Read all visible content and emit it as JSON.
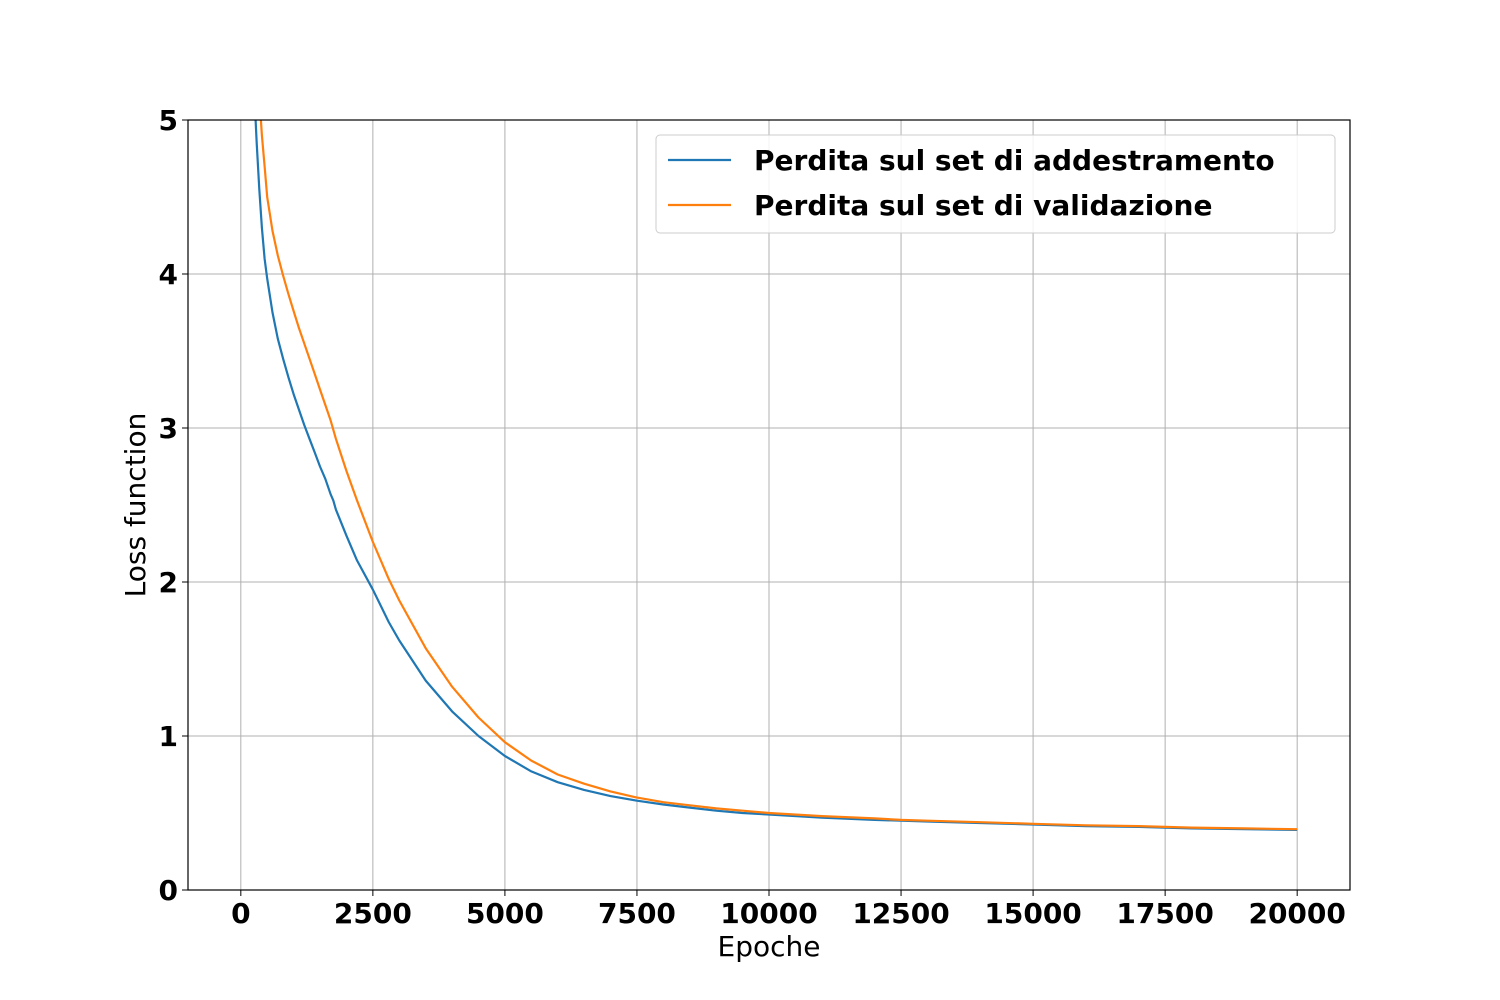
{
  "chart_data": {
    "type": "line",
    "title": "",
    "xlabel": "Epoche",
    "ylabel": "Loss function",
    "xlim": [
      -1000,
      21000
    ],
    "ylim": [
      0,
      5
    ],
    "xticks": [
      0,
      2500,
      5000,
      7500,
      10000,
      12500,
      15000,
      17500,
      20000
    ],
    "yticks": [
      0,
      1,
      2,
      3,
      4,
      5
    ],
    "xtick_labels": [
      "0",
      "2500",
      "5000",
      "7500",
      "10000",
      "12500",
      "15000",
      "17500",
      "20000"
    ],
    "ytick_labels": [
      "0",
      "1",
      "2",
      "3",
      "4",
      "5"
    ],
    "grid": true,
    "legend_position": "top-right",
    "series": [
      {
        "name": "Perdita sul set di addestramento",
        "color": "#1f77b4",
        "x": [
          280,
          300,
          350,
          400,
          450,
          500,
          600,
          700,
          800,
          900,
          1000,
          1100,
          1200,
          1300,
          1400,
          1500,
          1600,
          1700,
          1750,
          1800,
          2000,
          2200,
          2500,
          2800,
          3000,
          3500,
          4000,
          4500,
          5000,
          5500,
          6000,
          6500,
          7000,
          7500,
          8000,
          8500,
          9000,
          9500,
          10000,
          11000,
          12000,
          12500,
          13000,
          14000,
          15000,
          16000,
          17000,
          17500,
          18000,
          19000,
          20000
        ],
        "y": [
          5.0,
          4.85,
          4.55,
          4.3,
          4.1,
          3.97,
          3.75,
          3.58,
          3.45,
          3.33,
          3.22,
          3.12,
          3.02,
          2.93,
          2.84,
          2.75,
          2.67,
          2.57,
          2.53,
          2.47,
          2.3,
          2.14,
          1.95,
          1.74,
          1.62,
          1.36,
          1.16,
          1.0,
          0.87,
          0.77,
          0.7,
          0.65,
          0.61,
          0.58,
          0.555,
          0.535,
          0.515,
          0.5,
          0.49,
          0.47,
          0.455,
          0.45,
          0.445,
          0.435,
          0.425,
          0.415,
          0.41,
          0.405,
          0.4,
          0.395,
          0.39
        ]
      },
      {
        "name": "Perdita sul set di validazione",
        "color": "#ff7f0e",
        "x": [
          380,
          400,
          450,
          500,
          600,
          700,
          800,
          900,
          1000,
          1100,
          1200,
          1300,
          1400,
          1500,
          1600,
          1700,
          1800,
          2000,
          2200,
          2500,
          2800,
          3000,
          3500,
          4000,
          4500,
          5000,
          5500,
          6000,
          6500,
          7000,
          7500,
          8000,
          8500,
          9000,
          9500,
          10000,
          11000,
          12000,
          12500,
          13000,
          14000,
          15000,
          16000,
          17000,
          17500,
          18000,
          19000,
          20000
        ],
        "y": [
          5.0,
          4.9,
          4.7,
          4.5,
          4.28,
          4.12,
          3.99,
          3.87,
          3.76,
          3.65,
          3.55,
          3.45,
          3.35,
          3.25,
          3.15,
          3.05,
          2.93,
          2.72,
          2.53,
          2.26,
          2.02,
          1.88,
          1.57,
          1.32,
          1.12,
          0.96,
          0.84,
          0.75,
          0.69,
          0.64,
          0.6,
          0.57,
          0.55,
          0.53,
          0.515,
          0.5,
          0.48,
          0.465,
          0.455,
          0.45,
          0.44,
          0.43,
          0.42,
          0.415,
          0.41,
          0.405,
          0.4,
          0.395
        ]
      }
    ]
  }
}
